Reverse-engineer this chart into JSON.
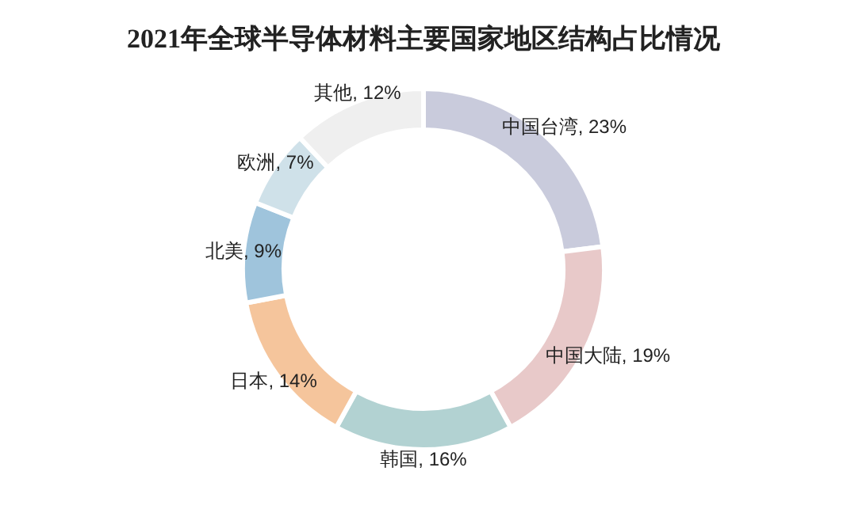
{
  "chart_data": {
    "type": "donut",
    "title": "2021年全球半导体材料主要国家地区结构占比情况",
    "categories": [
      "中国台湾",
      "中国大陆",
      "韩国",
      "日本",
      "北美",
      "欧洲",
      "其他"
    ],
    "values": [
      23,
      19,
      16,
      14,
      9,
      7,
      12
    ],
    "colors": [
      "#c9cbdc",
      "#e8c9c9",
      "#b2d2d2",
      "#f5c59c",
      "#9fc4dc",
      "#cfe1e9",
      "#efefef"
    ],
    "value_labels": [
      ", 23%",
      ", 19%",
      ", 16%",
      ", 14%",
      ", 9%",
      ", 7%",
      ", 12%"
    ]
  }
}
